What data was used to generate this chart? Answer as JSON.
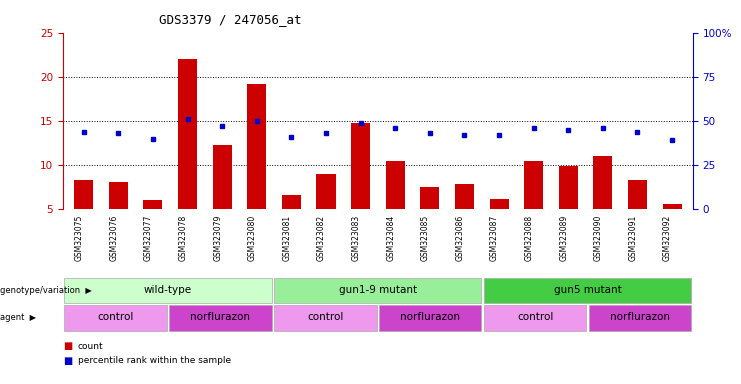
{
  "title": "GDS3379 / 247056_at",
  "samples": [
    "GSM323075",
    "GSM323076",
    "GSM323077",
    "GSM323078",
    "GSM323079",
    "GSM323080",
    "GSM323081",
    "GSM323082",
    "GSM323083",
    "GSM323084",
    "GSM323085",
    "GSM323086",
    "GSM323087",
    "GSM323088",
    "GSM323089",
    "GSM323090",
    "GSM323091",
    "GSM323092"
  ],
  "counts": [
    8.3,
    8.1,
    6.1,
    22.0,
    12.3,
    19.2,
    6.6,
    9.0,
    14.8,
    10.5,
    7.5,
    7.9,
    6.2,
    10.5,
    9.9,
    11.0,
    8.3,
    5.6
  ],
  "percentile_ranks": [
    44,
    43,
    40,
    51,
    47,
    50,
    41,
    43,
    49,
    46,
    43,
    42,
    42,
    46,
    45,
    46,
    44,
    39
  ],
  "bar_color": "#cc0000",
  "dot_color": "#0000cc",
  "ylim_left": [
    5,
    25
  ],
  "ylim_right": [
    0,
    100
  ],
  "yticks_left": [
    5,
    10,
    15,
    20,
    25
  ],
  "yticks_right": [
    0,
    25,
    50,
    75,
    100
  ],
  "grid_yticks": [
    10,
    15,
    20
  ],
  "genotype_groups": [
    {
      "label": "wild-type",
      "start": 0,
      "end": 5,
      "color": "#ccffcc"
    },
    {
      "label": "gun1-9 mutant",
      "start": 6,
      "end": 11,
      "color": "#99ee99"
    },
    {
      "label": "gun5 mutant",
      "start": 12,
      "end": 17,
      "color": "#44cc44"
    }
  ],
  "agent_groups": [
    {
      "label": "control",
      "start": 0,
      "end": 2,
      "color": "#ee99ee"
    },
    {
      "label": "norflurazon",
      "start": 3,
      "end": 5,
      "color": "#cc44cc"
    },
    {
      "label": "control",
      "start": 6,
      "end": 8,
      "color": "#ee99ee"
    },
    {
      "label": "norflurazon",
      "start": 9,
      "end": 11,
      "color": "#cc44cc"
    },
    {
      "label": "control",
      "start": 12,
      "end": 14,
      "color": "#ee99ee"
    },
    {
      "label": "norflurazon",
      "start": 15,
      "end": 17,
      "color": "#cc44cc"
    }
  ],
  "legend_items": [
    {
      "color": "#cc0000",
      "label": "count"
    },
    {
      "color": "#0000cc",
      "label": "percentile rank within the sample"
    }
  ],
  "background_color": "#ffffff"
}
